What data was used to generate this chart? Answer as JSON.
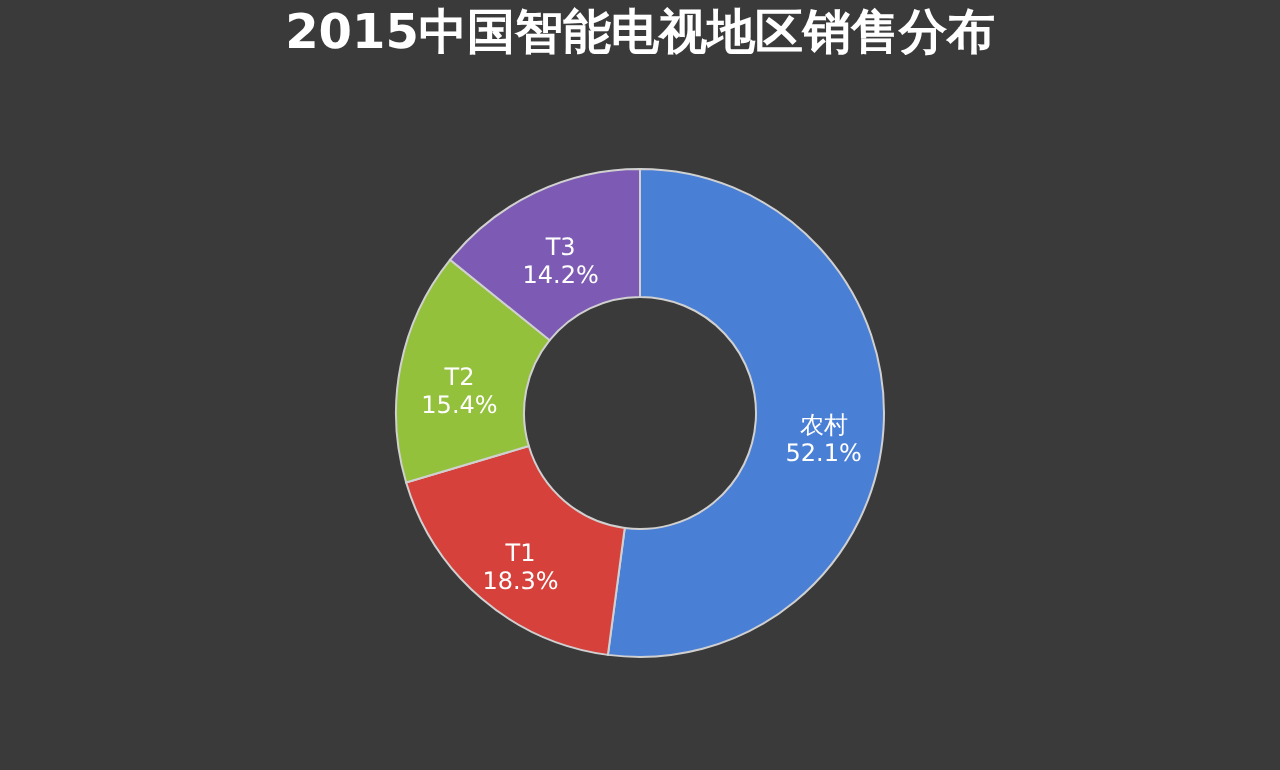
{
  "chart_data": {
    "type": "donut",
    "title": "2015中国智能电视地区销售分布",
    "categories": [
      "农村",
      "T1",
      "T2",
      "T3"
    ],
    "values": [
      52.1,
      18.3,
      15.4,
      14.2
    ],
    "value_labels": [
      "52.1%",
      "18.3%",
      "15.4%",
      "14.2%"
    ],
    "colors": [
      "#4a7fd6",
      "#d6413c",
      "#93c13c",
      "#7d5bb5"
    ],
    "legend": false
  }
}
